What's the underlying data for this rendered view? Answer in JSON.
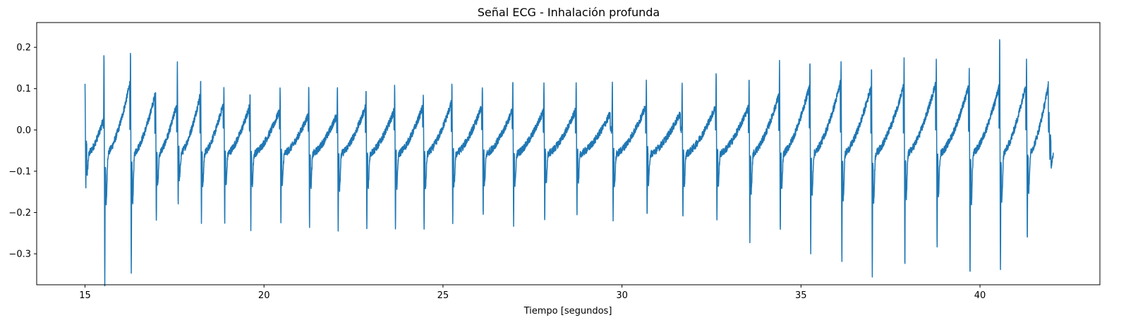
{
  "chart_data": {
    "type": "line",
    "title": "Señal ECG - Inhalación profunda",
    "xlabel": "Tiempo [segundos]",
    "ylabel": "",
    "xlim": [
      13.65,
      43.35
    ],
    "ylim": [
      -0.375,
      0.26
    ],
    "xticks": [
      15,
      20,
      25,
      30,
      35,
      40
    ],
    "xtick_labels": [
      "15",
      "20",
      "25",
      "30",
      "35",
      "40"
    ],
    "yticks": [
      -0.3,
      -0.2,
      -0.1,
      0.0,
      0.1,
      0.2
    ],
    "ytick_labels": [
      "−0.3",
      "−0.2",
      "−0.1",
      "0.0",
      "0.1",
      "0.2"
    ],
    "grid": false,
    "line_color": "#1f77b4",
    "x_range": [
      15.0,
      42.05
    ],
    "beats": [
      {
        "t": 15.0,
        "r": 0.11,
        "s": -0.13,
        "tw": 0.03
      },
      {
        "t": 15.53,
        "r": 0.19,
        "s": -0.35,
        "tw": 0.12
      },
      {
        "t": 16.27,
        "r": 0.19,
        "s": -0.33,
        "tw": 0.09
      },
      {
        "t": 16.97,
        "r": 0.1,
        "s": -0.21,
        "tw": 0.07
      },
      {
        "t": 17.58,
        "r": 0.16,
        "s": -0.17,
        "tw": 0.09
      },
      {
        "t": 18.23,
        "r": 0.13,
        "s": -0.21,
        "tw": 0.07
      },
      {
        "t": 18.88,
        "r": 0.11,
        "s": -0.21,
        "tw": 0.06
      },
      {
        "t": 19.61,
        "r": 0.1,
        "s": -0.22,
        "tw": 0.05
      },
      {
        "t": 20.45,
        "r": 0.1,
        "s": -0.21,
        "tw": 0.04
      },
      {
        "t": 21.25,
        "r": 0.11,
        "s": -0.22,
        "tw": 0.04
      },
      {
        "t": 22.05,
        "r": 0.11,
        "s": -0.23,
        "tw": 0.06
      },
      {
        "t": 22.85,
        "r": 0.11,
        "s": -0.23,
        "tw": 0.05
      },
      {
        "t": 23.65,
        "r": 0.11,
        "s": -0.22,
        "tw": 0.06
      },
      {
        "t": 24.45,
        "r": 0.09,
        "s": -0.23,
        "tw": 0.07
      },
      {
        "t": 25.25,
        "r": 0.11,
        "s": -0.21,
        "tw": 0.06
      },
      {
        "t": 26.1,
        "r": 0.11,
        "s": -0.2,
        "tw": 0.05
      },
      {
        "t": 26.95,
        "r": 0.12,
        "s": -0.21,
        "tw": 0.05
      },
      {
        "t": 27.82,
        "r": 0.12,
        "s": -0.21,
        "tw": 0.05
      },
      {
        "t": 28.72,
        "r": 0.12,
        "s": -0.19,
        "tw": 0.05
      },
      {
        "t": 29.73,
        "r": 0.12,
        "s": -0.2,
        "tw": 0.06
      },
      {
        "t": 30.68,
        "r": 0.12,
        "s": -0.2,
        "tw": 0.05
      },
      {
        "t": 31.68,
        "r": 0.12,
        "s": -0.21,
        "tw": 0.06
      },
      {
        "t": 32.63,
        "r": 0.14,
        "s": -0.2,
        "tw": 0.06
      },
      {
        "t": 33.55,
        "r": 0.13,
        "s": -0.25,
        "tw": 0.09
      },
      {
        "t": 34.4,
        "r": 0.17,
        "s": -0.24,
        "tw": 0.11
      },
      {
        "t": 35.25,
        "r": 0.17,
        "s": -0.28,
        "tw": 0.12
      },
      {
        "t": 36.12,
        "r": 0.16,
        "s": -0.3,
        "tw": 0.11
      },
      {
        "t": 36.97,
        "r": 0.16,
        "s": -0.33,
        "tw": 0.11
      },
      {
        "t": 37.88,
        "r": 0.17,
        "s": -0.31,
        "tw": 0.12
      },
      {
        "t": 38.78,
        "r": 0.17,
        "s": -0.27,
        "tw": 0.11
      },
      {
        "t": 39.7,
        "r": 0.16,
        "s": -0.33,
        "tw": 0.11
      },
      {
        "t": 40.55,
        "r": 0.23,
        "s": -0.32,
        "tw": 0.12
      },
      {
        "t": 41.3,
        "r": 0.18,
        "s": -0.25,
        "tw": 0.12
      },
      {
        "t": 41.93,
        "r": 0.04,
        "s": -0.07,
        "tw": 0.02
      }
    ]
  }
}
